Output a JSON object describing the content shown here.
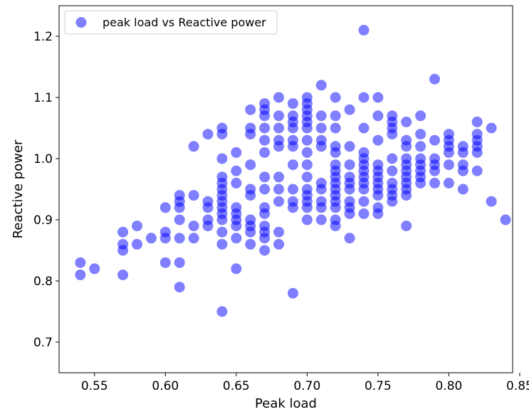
{
  "chart_data": {
    "type": "scatter",
    "xlabel": "Peak load",
    "ylabel": "Reactive power",
    "xlim": [
      0.525,
      0.845
    ],
    "ylim": [
      0.65,
      1.25
    ],
    "xticks": [
      0.55,
      0.6,
      0.65,
      0.7,
      0.75,
      0.8,
      0.85
    ],
    "xtick_labels": [
      "0.55",
      "0.60",
      "0.65",
      "0.70",
      "0.75",
      "0.80",
      "0.85"
    ],
    "yticks": [
      0.7,
      0.8,
      0.9,
      1.0,
      1.1,
      1.2
    ],
    "ytick_labels": [
      "0.7",
      "0.8",
      "0.9",
      "1.0",
      "1.1",
      "1.2"
    ],
    "grid": false,
    "legend_position": "top-left",
    "series": [
      {
        "name": "peak load vs Reactive power",
        "color": "#0000ff",
        "alpha": 0.5,
        "points": [
          [
            0.54,
            0.83
          ],
          [
            0.54,
            0.81
          ],
          [
            0.55,
            0.82
          ],
          [
            0.57,
            0.88
          ],
          [
            0.57,
            0.86
          ],
          [
            0.57,
            0.85
          ],
          [
            0.57,
            0.81
          ],
          [
            0.58,
            0.89
          ],
          [
            0.58,
            0.86
          ],
          [
            0.59,
            0.87
          ],
          [
            0.6,
            0.92
          ],
          [
            0.6,
            0.88
          ],
          [
            0.6,
            0.87
          ],
          [
            0.6,
            0.83
          ],
          [
            0.61,
            0.94
          ],
          [
            0.61,
            0.93
          ],
          [
            0.61,
            0.92
          ],
          [
            0.61,
            0.9
          ],
          [
            0.61,
            0.87
          ],
          [
            0.61,
            0.83
          ],
          [
            0.61,
            0.79
          ],
          [
            0.62,
            1.02
          ],
          [
            0.62,
            0.94
          ],
          [
            0.62,
            0.89
          ],
          [
            0.62,
            0.87
          ],
          [
            0.63,
            1.04
          ],
          [
            0.63,
            0.93
          ],
          [
            0.63,
            0.92
          ],
          [
            0.63,
            0.9
          ],
          [
            0.63,
            0.89
          ],
          [
            0.64,
            1.05
          ],
          [
            0.64,
            1.04
          ],
          [
            0.64,
            1.0
          ],
          [
            0.64,
            0.97
          ],
          [
            0.64,
            0.96
          ],
          [
            0.64,
            0.95
          ],
          [
            0.64,
            0.94
          ],
          [
            0.64,
            0.93
          ],
          [
            0.64,
            0.92
          ],
          [
            0.64,
            0.91
          ],
          [
            0.64,
            0.9
          ],
          [
            0.64,
            0.88
          ],
          [
            0.64,
            0.86
          ],
          [
            0.64,
            0.75
          ],
          [
            0.65,
            1.01
          ],
          [
            0.65,
            0.98
          ],
          [
            0.65,
            0.96
          ],
          [
            0.65,
            0.92
          ],
          [
            0.65,
            0.91
          ],
          [
            0.65,
            0.9
          ],
          [
            0.65,
            0.89
          ],
          [
            0.65,
            0.87
          ],
          [
            0.65,
            0.82
          ],
          [
            0.66,
            1.08
          ],
          [
            0.66,
            1.05
          ],
          [
            0.66,
            1.04
          ],
          [
            0.66,
            0.99
          ],
          [
            0.66,
            0.95
          ],
          [
            0.66,
            0.94
          ],
          [
            0.66,
            0.9
          ],
          [
            0.66,
            0.89
          ],
          [
            0.66,
            0.88
          ],
          [
            0.66,
            0.86
          ],
          [
            0.67,
            1.09
          ],
          [
            0.67,
            1.08
          ],
          [
            0.67,
            1.07
          ],
          [
            0.67,
            1.05
          ],
          [
            0.67,
            1.03
          ],
          [
            0.67,
            1.01
          ],
          [
            0.67,
            0.97
          ],
          [
            0.67,
            0.95
          ],
          [
            0.67,
            0.92
          ],
          [
            0.67,
            0.91
          ],
          [
            0.67,
            0.89
          ],
          [
            0.67,
            0.88
          ],
          [
            0.67,
            0.87
          ],
          [
            0.67,
            0.85
          ],
          [
            0.68,
            1.1
          ],
          [
            0.68,
            1.07
          ],
          [
            0.68,
            1.05
          ],
          [
            0.68,
            1.03
          ],
          [
            0.68,
            1.02
          ],
          [
            0.68,
            0.97
          ],
          [
            0.68,
            0.95
          ],
          [
            0.68,
            0.93
          ],
          [
            0.68,
            0.88
          ],
          [
            0.68,
            0.86
          ],
          [
            0.69,
            1.09
          ],
          [
            0.69,
            1.07
          ],
          [
            0.69,
            1.06
          ],
          [
            0.69,
            1.05
          ],
          [
            0.69,
            1.03
          ],
          [
            0.69,
            1.02
          ],
          [
            0.69,
            0.99
          ],
          [
            0.69,
            0.95
          ],
          [
            0.69,
            0.93
          ],
          [
            0.69,
            0.92
          ],
          [
            0.69,
            0.78
          ],
          [
            0.7,
            1.1
          ],
          [
            0.7,
            1.09
          ],
          [
            0.7,
            1.08
          ],
          [
            0.7,
            1.07
          ],
          [
            0.7,
            1.06
          ],
          [
            0.7,
            1.05
          ],
          [
            0.7,
            1.03
          ],
          [
            0.7,
            1.01
          ],
          [
            0.7,
            0.99
          ],
          [
            0.7,
            0.97
          ],
          [
            0.7,
            0.95
          ],
          [
            0.7,
            0.94
          ],
          [
            0.7,
            0.93
          ],
          [
            0.7,
            0.92
          ],
          [
            0.7,
            0.9
          ],
          [
            0.71,
            1.12
          ],
          [
            0.71,
            1.07
          ],
          [
            0.71,
            1.05
          ],
          [
            0.71,
            1.03
          ],
          [
            0.71,
            1.02
          ],
          [
            0.71,
            0.96
          ],
          [
            0.71,
            0.95
          ],
          [
            0.71,
            0.93
          ],
          [
            0.71,
            0.92
          ],
          [
            0.71,
            0.9
          ],
          [
            0.72,
            1.1
          ],
          [
            0.72,
            1.07
          ],
          [
            0.72,
            1.05
          ],
          [
            0.72,
            1.02
          ],
          [
            0.72,
            1.01
          ],
          [
            0.72,
            0.99
          ],
          [
            0.72,
            0.98
          ],
          [
            0.72,
            0.97
          ],
          [
            0.72,
            0.96
          ],
          [
            0.72,
            0.95
          ],
          [
            0.72,
            0.94
          ],
          [
            0.72,
            0.93
          ],
          [
            0.72,
            0.92
          ],
          [
            0.72,
            0.9
          ],
          [
            0.72,
            0.89
          ],
          [
            0.73,
            1.08
          ],
          [
            0.73,
            1.02
          ],
          [
            0.73,
            0.99
          ],
          [
            0.73,
            0.97
          ],
          [
            0.73,
            0.96
          ],
          [
            0.73,
            0.95
          ],
          [
            0.73,
            0.93
          ],
          [
            0.73,
            0.92
          ],
          [
            0.73,
            0.91
          ],
          [
            0.73,
            0.87
          ],
          [
            0.74,
            1.21
          ],
          [
            0.74,
            1.1
          ],
          [
            0.74,
            1.05
          ],
          [
            0.74,
            1.01
          ],
          [
            0.74,
            1.0
          ],
          [
            0.74,
            0.99
          ],
          [
            0.74,
            0.98
          ],
          [
            0.74,
            0.97
          ],
          [
            0.74,
            0.96
          ],
          [
            0.74,
            0.95
          ],
          [
            0.74,
            0.93
          ],
          [
            0.74,
            0.91
          ],
          [
            0.75,
            1.1
          ],
          [
            0.75,
            1.07
          ],
          [
            0.75,
            1.03
          ],
          [
            0.75,
            0.99
          ],
          [
            0.75,
            0.98
          ],
          [
            0.75,
            0.97
          ],
          [
            0.75,
            0.96
          ],
          [
            0.75,
            0.95
          ],
          [
            0.75,
            0.94
          ],
          [
            0.75,
            0.92
          ],
          [
            0.75,
            0.91
          ],
          [
            0.76,
            1.07
          ],
          [
            0.76,
            1.06
          ],
          [
            0.76,
            1.05
          ],
          [
            0.76,
            1.04
          ],
          [
            0.76,
            1.0
          ],
          [
            0.76,
            0.98
          ],
          [
            0.76,
            0.96
          ],
          [
            0.76,
            0.95
          ],
          [
            0.76,
            0.94
          ],
          [
            0.76,
            0.93
          ],
          [
            0.77,
            1.06
          ],
          [
            0.77,
            1.03
          ],
          [
            0.77,
            1.02
          ],
          [
            0.77,
            1.0
          ],
          [
            0.77,
            0.99
          ],
          [
            0.77,
            0.98
          ],
          [
            0.77,
            0.97
          ],
          [
            0.77,
            0.96
          ],
          [
            0.77,
            0.95
          ],
          [
            0.77,
            0.94
          ],
          [
            0.77,
            0.89
          ],
          [
            0.78,
            1.07
          ],
          [
            0.78,
            1.04
          ],
          [
            0.78,
            1.02
          ],
          [
            0.78,
            1.0
          ],
          [
            0.78,
            0.99
          ],
          [
            0.78,
            0.98
          ],
          [
            0.78,
            0.97
          ],
          [
            0.78,
            0.96
          ],
          [
            0.79,
            1.13
          ],
          [
            0.79,
            1.03
          ],
          [
            0.79,
            1.0
          ],
          [
            0.79,
            0.99
          ],
          [
            0.79,
            0.98
          ],
          [
            0.79,
            0.96
          ],
          [
            0.8,
            1.04
          ],
          [
            0.8,
            1.03
          ],
          [
            0.8,
            1.02
          ],
          [
            0.8,
            1.01
          ],
          [
            0.8,
            0.99
          ],
          [
            0.8,
            0.96
          ],
          [
            0.81,
            1.02
          ],
          [
            0.81,
            1.01
          ],
          [
            0.81,
            0.99
          ],
          [
            0.81,
            0.98
          ],
          [
            0.81,
            0.95
          ],
          [
            0.82,
            1.06
          ],
          [
            0.82,
            1.04
          ],
          [
            0.82,
            1.03
          ],
          [
            0.82,
            1.02
          ],
          [
            0.82,
            1.01
          ],
          [
            0.82,
            0.98
          ],
          [
            0.83,
            1.05
          ],
          [
            0.83,
            0.93
          ],
          [
            0.84,
            0.9
          ]
        ]
      }
    ]
  }
}
